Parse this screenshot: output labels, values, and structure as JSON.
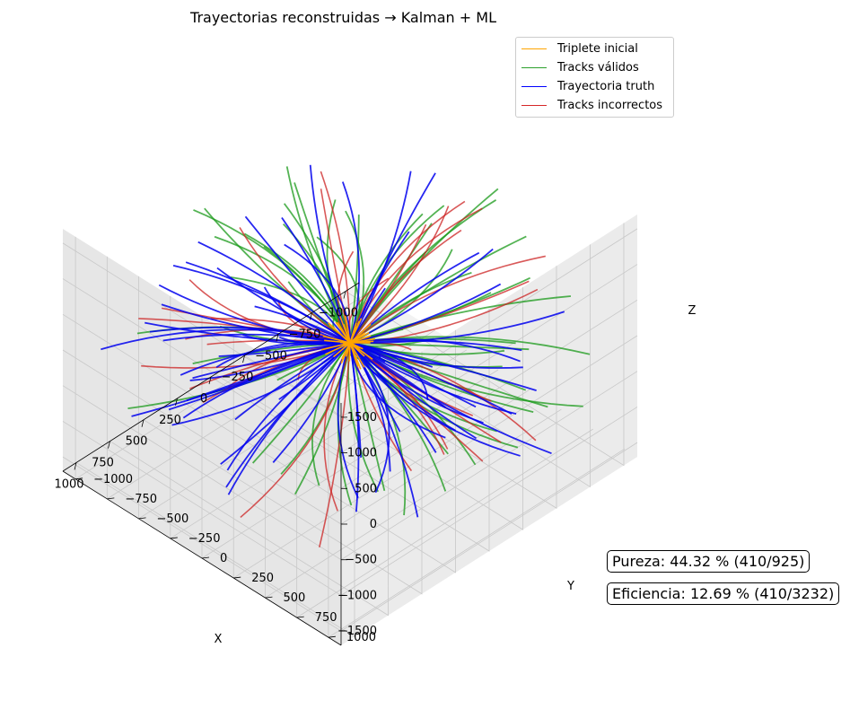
{
  "title": "Trayectorias reconstruidas → Kalman + ML",
  "colors": {
    "triplete": "#ffa500",
    "validos": "#1a9a1a",
    "truth": "#0000ee",
    "incorrectos": "#cc2222"
  },
  "legend": [
    {
      "label": "Triplete inicial",
      "color": "#ffa500"
    },
    {
      "label": "Tracks válidos",
      "color": "#2ca02c"
    },
    {
      "label": "Trayectoria truth",
      "color": "#0000ff"
    },
    {
      "label": "Tracks incorrectos",
      "color": "#d62728"
    }
  ],
  "stats": {
    "pureza": "Pureza: 44.32 % (410/925)",
    "eficiencia": "Eficiencia: 12.69 % (410/3232)"
  },
  "chart_data": {
    "type": "line3d",
    "title": "Trayectorias reconstruidas → Kalman + ML",
    "xlabel": "X",
    "ylabel": "Y",
    "zlabel": "Z",
    "xlim": [
      -1100,
      1100
    ],
    "ylim": [
      -1100,
      1100
    ],
    "zlim": [
      -1700,
      1700
    ],
    "x_ticks": [
      "−1000",
      "−750",
      "−500",
      "−250",
      "0",
      "250",
      "500",
      "750",
      "1000"
    ],
    "y_ticks": [
      "−1000",
      "−750",
      "−500",
      "−250",
      "0",
      "250",
      "500",
      "750",
      "1000"
    ],
    "z_ticks": [
      "−1500",
      "−1000",
      "−500",
      "0",
      "500",
      "1000",
      "1500"
    ],
    "grid": true,
    "legend_position": "top-right",
    "series": [
      {
        "name": "Triplete inicial"
      },
      {
        "name": "Tracks válidos"
      },
      {
        "name": "Trayectoria truth"
      },
      {
        "name": "Tracks incorrectos"
      }
    ]
  }
}
